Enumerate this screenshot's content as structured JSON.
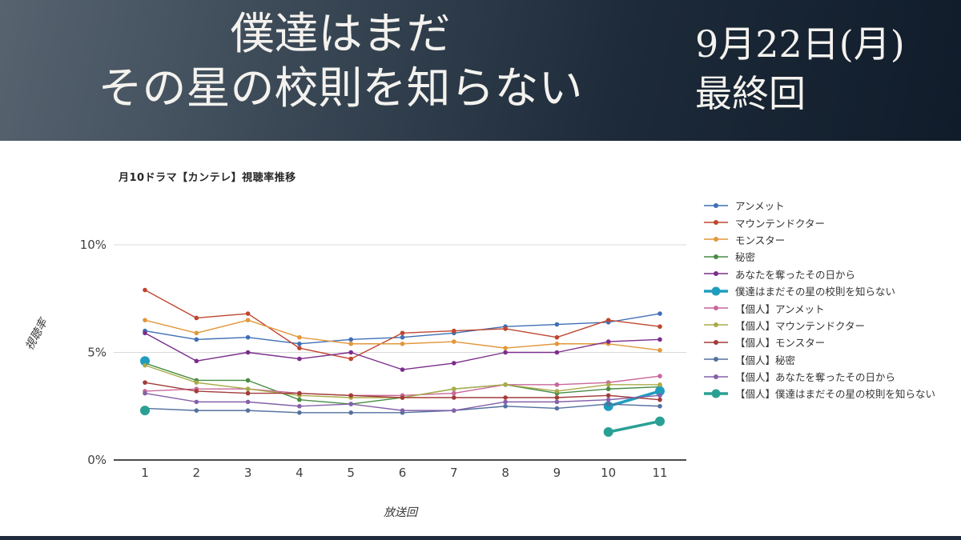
{
  "header": {
    "title_line1": "僕達はまだ",
    "title_line2": "その星の校則を知らない",
    "date_line1": "9月22日(月)",
    "date_line2": "最終回"
  },
  "chart_data": {
    "type": "line",
    "title": "月10ドラマ【カンテレ】視聴率推移",
    "x_axis": {
      "label": "放送回",
      "ticks": [
        "1",
        "2",
        "3",
        "4",
        "5",
        "6",
        "7",
        "8",
        "9",
        "10",
        "11"
      ]
    },
    "y_axis": {
      "label": "視聴率",
      "ticks": [
        {
          "value": 0,
          "label": "0%"
        },
        {
          "value": 5,
          "label": "5%"
        },
        {
          "value": 10,
          "label": "10%"
        }
      ]
    },
    "ylim": [
      0,
      10.5
    ],
    "grid": true,
    "legend_position": "right",
    "x": [
      1,
      2,
      3,
      4,
      5,
      6,
      7,
      8,
      9,
      10,
      11
    ],
    "series": [
      {
        "name": "アンメット",
        "color": "#3f6fb5",
        "bold": false,
        "values": [
          6.0,
          5.6,
          5.7,
          5.4,
          5.6,
          5.7,
          5.9,
          6.2,
          6.3,
          6.4,
          6.8
        ]
      },
      {
        "name": "マウンテンドクター",
        "color": "#c0462f",
        "bold": false,
        "values": [
          7.9,
          6.6,
          6.8,
          5.2,
          4.7,
          5.9,
          6.0,
          6.1,
          5.7,
          6.5,
          6.2
        ]
      },
      {
        "name": "モンスター",
        "color": "#e2973a",
        "bold": false,
        "values": [
          6.5,
          5.9,
          6.5,
          5.7,
          5.4,
          5.4,
          5.5,
          5.2,
          5.4,
          5.4,
          5.1
        ]
      },
      {
        "name": "秘密",
        "color": "#478c42",
        "bold": false,
        "values": [
          4.5,
          3.7,
          3.7,
          2.8,
          2.6,
          2.9,
          3.3,
          3.5,
          3.1,
          3.3,
          3.4
        ]
      },
      {
        "name": "あなたを奪ったその日から",
        "color": "#7b2d8b",
        "bold": false,
        "values": [
          5.9,
          4.6,
          5.0,
          4.7,
          5.0,
          4.2,
          4.5,
          5.0,
          5.0,
          5.5,
          5.6
        ]
      },
      {
        "name": "僕達はまだその星の校則を知らない",
        "color": "#1f9dbe",
        "bold": true,
        "values": [
          4.6,
          null,
          null,
          null,
          null,
          null,
          null,
          null,
          null,
          2.5,
          3.2
        ]
      },
      {
        "name": "【個人】アンメット",
        "color": "#c9679a",
        "bold": false,
        "values": [
          3.2,
          3.3,
          3.3,
          3.1,
          3.0,
          3.0,
          3.1,
          3.5,
          3.5,
          3.6,
          3.9
        ]
      },
      {
        "name": "【個人】マウンテンドクター",
        "color": "#a9ab49",
        "bold": false,
        "values": [
          4.4,
          3.6,
          3.3,
          3.0,
          2.9,
          2.9,
          3.3,
          3.5,
          3.2,
          3.5,
          3.5
        ]
      },
      {
        "name": "【個人】モンスター",
        "color": "#a23c38",
        "bold": false,
        "values": [
          3.6,
          3.2,
          3.1,
          3.1,
          3.0,
          2.9,
          2.9,
          2.9,
          2.9,
          3.0,
          2.8
        ]
      },
      {
        "name": "【個人】秘密",
        "color": "#53719e",
        "bold": false,
        "values": [
          2.4,
          2.3,
          2.3,
          2.2,
          2.2,
          2.2,
          2.3,
          2.5,
          2.4,
          2.6,
          2.5
        ]
      },
      {
        "name": "【個人】あなたを奪ったその日から",
        "color": "#8461a8",
        "bold": false,
        "values": [
          3.1,
          2.7,
          2.7,
          2.5,
          2.6,
          2.3,
          2.3,
          2.7,
          2.7,
          2.8,
          3.0
        ]
      },
      {
        "name": "【個人】僕達はまだその星の校則を知らない",
        "color": "#2aa094",
        "bold": true,
        "values": [
          2.3,
          null,
          null,
          null,
          null,
          null,
          null,
          null,
          null,
          1.3,
          1.8
        ]
      }
    ]
  }
}
